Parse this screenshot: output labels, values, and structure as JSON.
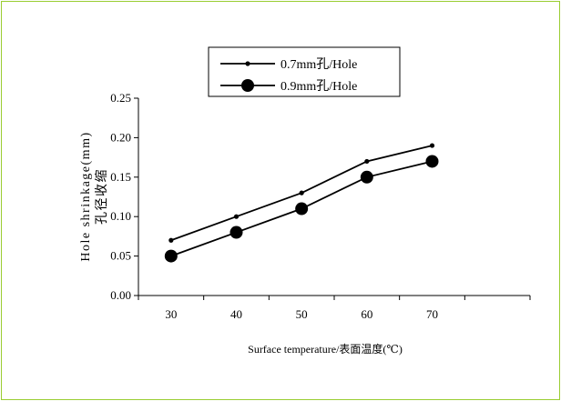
{
  "chart_data": {
    "type": "line",
    "x": [
      30,
      40,
      50,
      60,
      70
    ],
    "series": [
      {
        "name": "0.7mm孔/Hole",
        "values": [
          0.07,
          0.1,
          0.13,
          0.17,
          0.19
        ],
        "marker": "small-dot"
      },
      {
        "name": "0.9mm孔/Hole",
        "values": [
          0.05,
          0.08,
          0.11,
          0.15,
          0.17
        ],
        "marker": "large-dot"
      }
    ],
    "xlabel": "Surface temperature/表面温度(℃)",
    "ylabel_line1": "Hole shrinkage(mm)",
    "ylabel_line2": "孔径收缩",
    "xticks": [
      "30",
      "40",
      "50",
      "60",
      "70"
    ],
    "yticks": [
      "0.00",
      "0.05",
      "0.10",
      "0.15",
      "0.20",
      "0.25"
    ],
    "xlim": [
      25,
      85
    ],
    "ylim": [
      0,
      0.25
    ],
    "grid": false,
    "legend_position": "top-center",
    "line_color": "#000000",
    "frame_color": "#9acd32"
  }
}
